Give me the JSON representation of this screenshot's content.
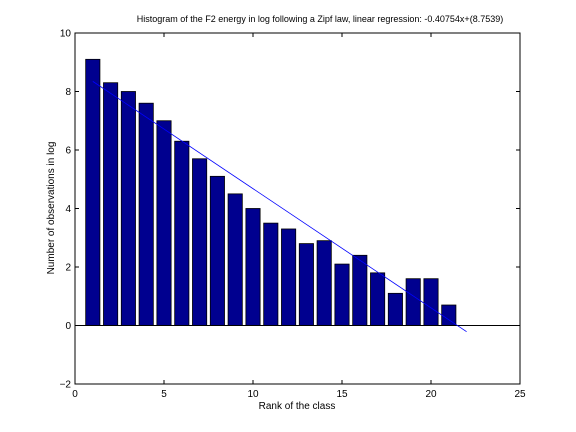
{
  "chart_data": {
    "type": "bar",
    "title": "Histogram of the F2 energy in log following a Zipf law, linear regression: -0.40754x+(8.7539)",
    "xlabel": "Rank of the class",
    "ylabel": "Number of observations in log",
    "xlim": [
      0,
      25
    ],
    "ylim": [
      -2,
      10
    ],
    "xticks": [
      0,
      5,
      10,
      15,
      20,
      25
    ],
    "yticks": [
      -2,
      0,
      2,
      4,
      6,
      8,
      10
    ],
    "x": [
      1,
      2,
      3,
      4,
      5,
      6,
      7,
      8,
      9,
      10,
      11,
      12,
      13,
      14,
      15,
      16,
      17,
      18,
      19,
      20,
      21
    ],
    "values": [
      9.1,
      8.3,
      8.0,
      7.6,
      7.0,
      6.3,
      5.7,
      5.1,
      4.5,
      4.0,
      3.5,
      3.3,
      2.8,
      2.9,
      2.1,
      2.4,
      1.8,
      1.1,
      1.6,
      1.6,
      0.7
    ],
    "regression": {
      "slope": -0.40754,
      "intercept": 8.7539,
      "x_range": [
        1,
        22
      ]
    },
    "zero_line": true,
    "grid": false,
    "bar_color": "#00008f",
    "line_color": "#0000ff"
  }
}
